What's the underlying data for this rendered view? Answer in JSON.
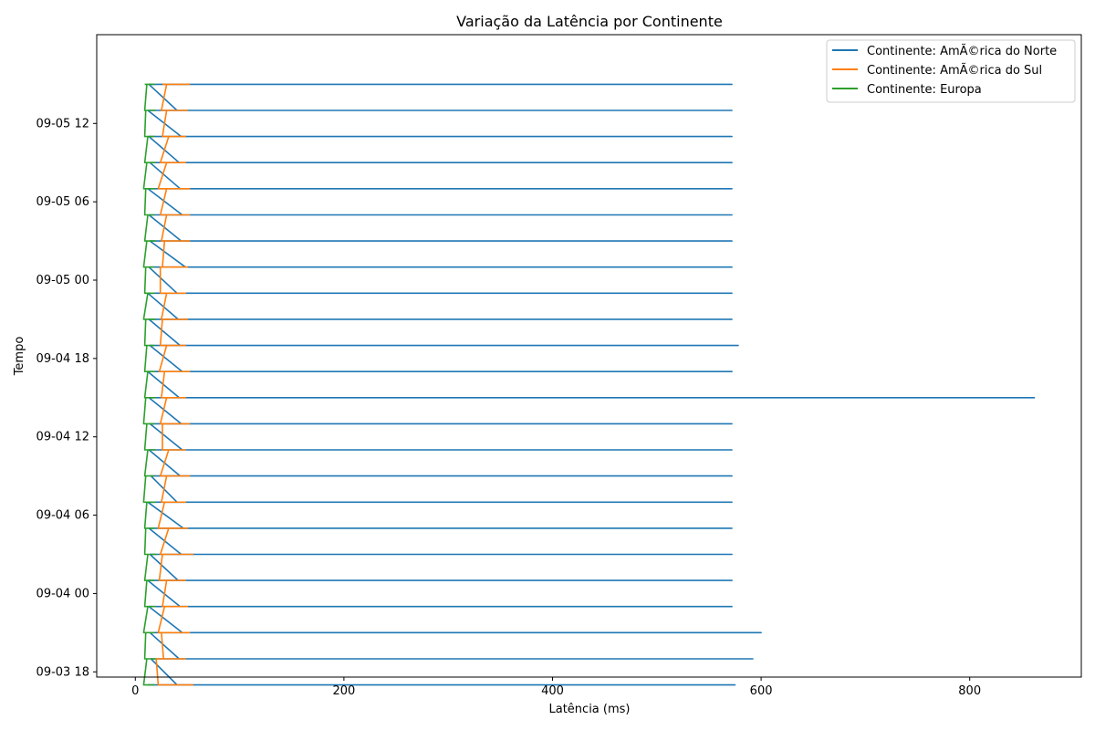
{
  "chart_data": {
    "type": "line",
    "title": "Variação da Latência por Continente",
    "xlabel": "Latência (ms)",
    "ylabel": "Tempo",
    "xlim": [
      -37,
      907
    ],
    "ylim": [
      "2024-09-03 17:36",
      "2024-09-05 18:48"
    ],
    "grid": false,
    "legend_position": "top-right",
    "x_ticks": [
      0,
      200,
      400,
      600,
      800
    ],
    "y_ticks": [
      "2024-09-03 18:00",
      "2024-09-04 00:00",
      "2024-09-04 06:00",
      "2024-09-04 12:00",
      "2024-09-04 18:00",
      "2024-09-05 00:00",
      "2024-09-05 06:00",
      "2024-09-05 12:00"
    ],
    "y_tick_labels": [
      "09-03 18",
      "09-04 00",
      "09-04 06",
      "09-04 12",
      "09-04 18",
      "09-05 00",
      "09-05 06",
      "09-05 12"
    ],
    "colors": [
      "#1f77b4",
      "#ff7f0e",
      "#2ca02c"
    ],
    "times": [
      "2024-09-03 17:00",
      "2024-09-03 19:00",
      "2024-09-03 21:00",
      "2024-09-03 23:00",
      "2024-09-04 01:00",
      "2024-09-04 03:00",
      "2024-09-04 05:00",
      "2024-09-04 07:00",
      "2024-09-04 09:00",
      "2024-09-04 11:00",
      "2024-09-04 13:00",
      "2024-09-04 15:00",
      "2024-09-04 17:00",
      "2024-09-04 19:00",
      "2024-09-04 21:00",
      "2024-09-04 23:00",
      "2024-09-05 01:00",
      "2024-09-05 03:00",
      "2024-09-05 05:00",
      "2024-09-05 07:00",
      "2024-09-05 09:00",
      "2024-09-05 11:00",
      "2024-09-05 13:00",
      "2024-09-05 15:00"
    ],
    "series": [
      {
        "name": "Continente: AmÃ©rica do Norte",
        "point_values": [
          [
            12,
            575,
            570,
            60,
            40
          ],
          [
            15,
            592,
            570,
            58,
            42
          ],
          [
            14,
            600,
            570,
            52,
            45
          ],
          [
            13,
            572,
            570,
            50,
            43
          ],
          [
            12,
            572,
            570,
            57,
            41
          ],
          [
            14,
            572,
            570,
            55,
            44
          ],
          [
            13,
            572,
            570,
            50,
            46
          ],
          [
            12,
            572,
            570,
            52,
            40
          ],
          [
            15,
            572,
            570,
            57,
            43
          ],
          [
            13,
            572,
            570,
            50,
            45
          ],
          [
            14,
            572,
            570,
            52,
            44
          ],
          [
            13,
            862,
            570,
            50,
            42
          ],
          [
            12,
            572,
            570,
            57,
            45
          ],
          [
            14,
            578,
            570,
            50,
            43
          ],
          [
            13,
            572,
            570,
            50,
            41
          ],
          [
            12,
            572,
            570,
            52,
            40
          ],
          [
            13,
            572,
            570,
            97,
            48
          ],
          [
            14,
            572,
            570,
            52,
            44
          ],
          [
            13,
            572,
            570,
            50,
            45
          ],
          [
            12,
            572,
            570,
            60,
            43
          ],
          [
            14,
            572,
            570,
            60,
            42
          ],
          [
            13,
            572,
            570,
            62,
            44
          ],
          [
            12,
            572,
            570,
            52,
            40
          ],
          [
            13,
            572,
            570,
            52,
            45
          ]
        ]
      },
      {
        "name": "Continente: AmÃ©rica do Sul",
        "point_values": [
          [
            32,
            55,
            22
          ],
          [
            20,
            48,
            27
          ],
          [
            25,
            52,
            22
          ],
          [
            28,
            50,
            26
          ],
          [
            30,
            48,
            23
          ],
          [
            26,
            55,
            24
          ],
          [
            32,
            50,
            22
          ],
          [
            28,
            48,
            25
          ],
          [
            30,
            52,
            24
          ],
          [
            32,
            48,
            26
          ],
          [
            26,
            52,
            24
          ],
          [
            30,
            48,
            25
          ],
          [
            28,
            52,
            23
          ],
          [
            30,
            48,
            24
          ],
          [
            26,
            50,
            25
          ],
          [
            30,
            48,
            24
          ],
          [
            24,
            50,
            26
          ],
          [
            28,
            52,
            25
          ],
          [
            30,
            52,
            24
          ],
          [
            30,
            52,
            22
          ],
          [
            30,
            48,
            24
          ],
          [
            32,
            48,
            26
          ],
          [
            30,
            50,
            25
          ],
          [
            30,
            52,
            26
          ]
        ]
      },
      {
        "name": "Continente: Europa",
        "point_values": [
          [
            10,
            18,
            8
          ],
          [
            11,
            19,
            9
          ],
          [
            10,
            18,
            8
          ],
          [
            12,
            19,
            9
          ],
          [
            11,
            18,
            9
          ],
          [
            12,
            20,
            9
          ],
          [
            10,
            18,
            9
          ],
          [
            11,
            19,
            8
          ],
          [
            10,
            18,
            9
          ],
          [
            12,
            19,
            9
          ],
          [
            11,
            18,
            8
          ],
          [
            10,
            19,
            9
          ],
          [
            12,
            18,
            9
          ],
          [
            11,
            18,
            9
          ],
          [
            10,
            19,
            8
          ],
          [
            12,
            18,
            9
          ],
          [
            10,
            18,
            8
          ],
          [
            11,
            19,
            9
          ],
          [
            12,
            18,
            9
          ],
          [
            10,
            18,
            8
          ],
          [
            11,
            19,
            9
          ],
          [
            12,
            18,
            9
          ],
          [
            10,
            19,
            9
          ],
          [
            11,
            18,
            9
          ]
        ]
      }
    ]
  }
}
